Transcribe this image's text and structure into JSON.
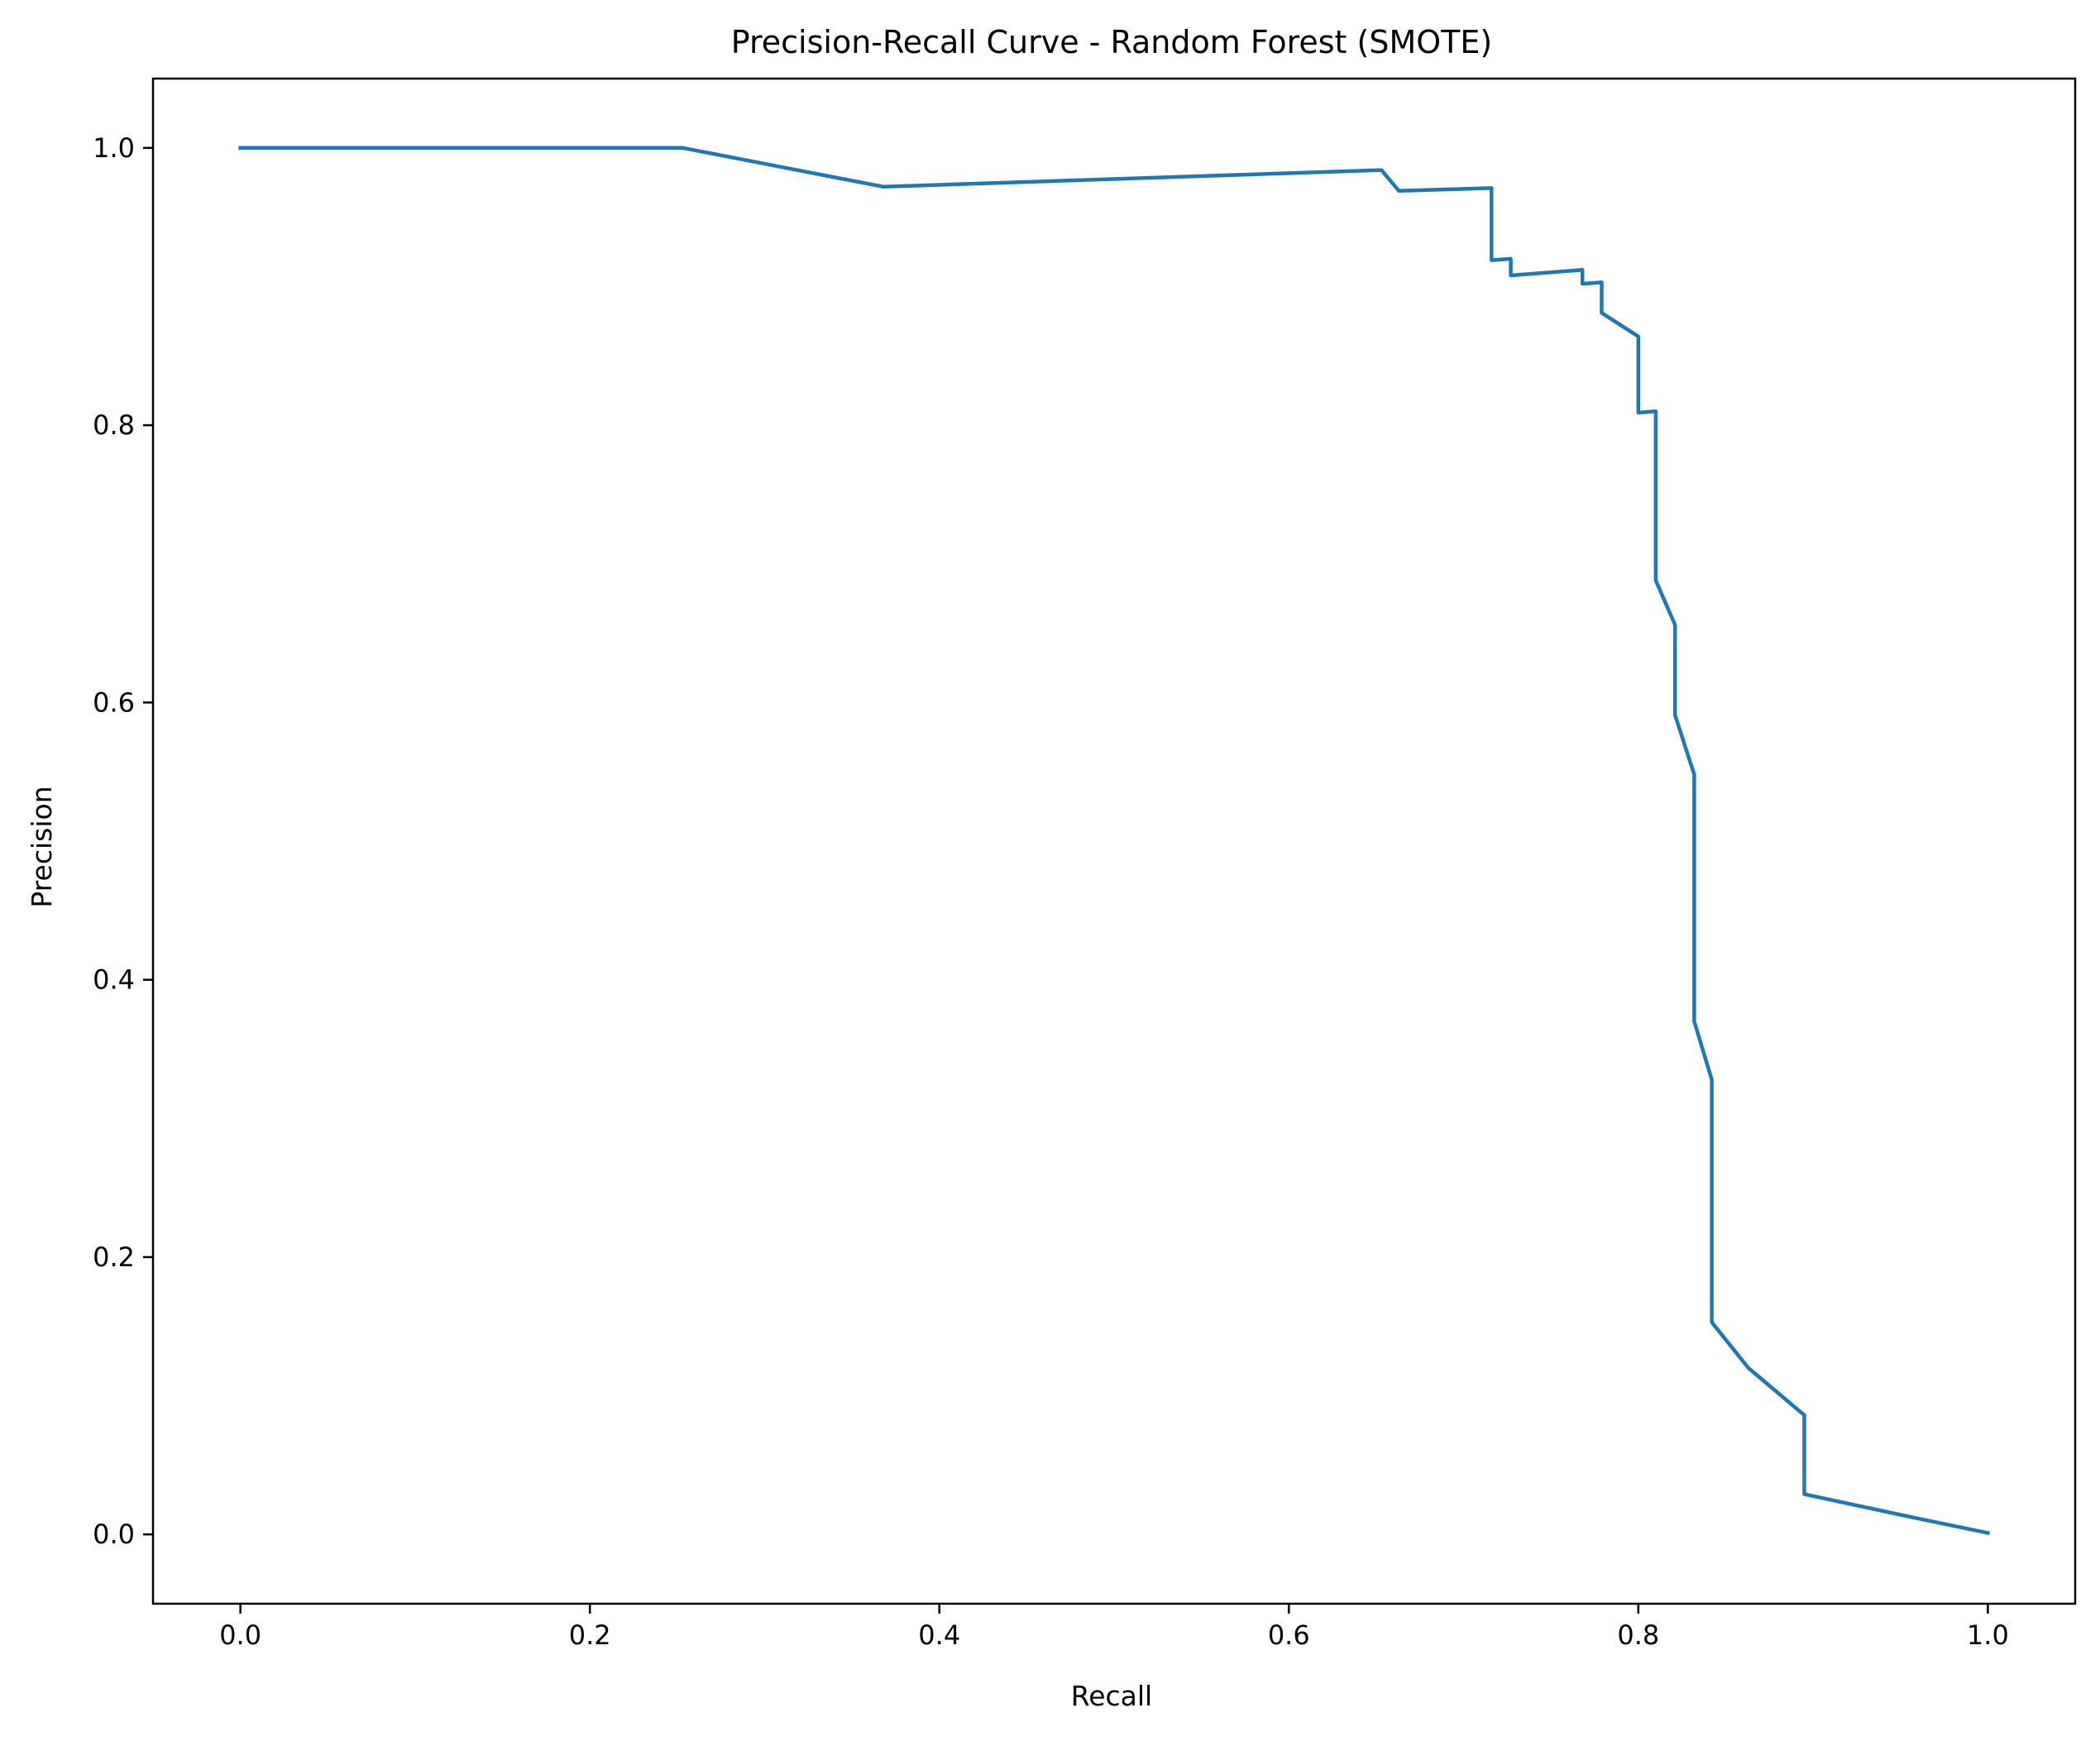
{
  "chart_data": {
    "type": "line",
    "title": "Precision-Recall Curve - Random Forest (SMOTE)",
    "xlabel": "Recall",
    "ylabel": "Precision",
    "xlim": [
      -0.05,
      1.05
    ],
    "ylim": [
      -0.05,
      1.05
    ],
    "xticks": [
      0.0,
      0.2,
      0.4,
      0.6,
      0.8,
      1.0
    ],
    "xtick_labels": [
      "0.0",
      "0.2",
      "0.4",
      "0.6",
      "0.8",
      "1.0"
    ],
    "yticks": [
      0.0,
      0.2,
      0.4,
      0.6,
      0.8,
      1.0
    ],
    "ytick_labels": [
      "0.0",
      "0.2",
      "0.4",
      "0.6",
      "0.8",
      "1.0"
    ],
    "grid": false,
    "legend": "none",
    "series": [
      {
        "color": "#1f77b4",
        "x": [
          0.0,
          0.253,
          0.368,
          0.653,
          0.663,
          0.716,
          0.716,
          0.727,
          0.727,
          0.768,
          0.768,
          0.779,
          0.779,
          0.8,
          0.8,
          0.81,
          0.81,
          0.821,
          0.821,
          0.832,
          0.832,
          0.842,
          0.842,
          0.863,
          0.895,
          0.895,
          0.958,
          1.0
        ],
        "y": [
          1.0,
          1.0,
          0.972,
          0.984,
          0.969,
          0.971,
          0.919,
          0.92,
          0.908,
          0.912,
          0.902,
          0.903,
          0.881,
          0.864,
          0.809,
          0.81,
          0.688,
          0.656,
          0.591,
          0.548,
          0.37,
          0.328,
          0.153,
          0.12,
          0.086,
          0.029,
          0.012,
          0.001
        ]
      }
    ]
  }
}
